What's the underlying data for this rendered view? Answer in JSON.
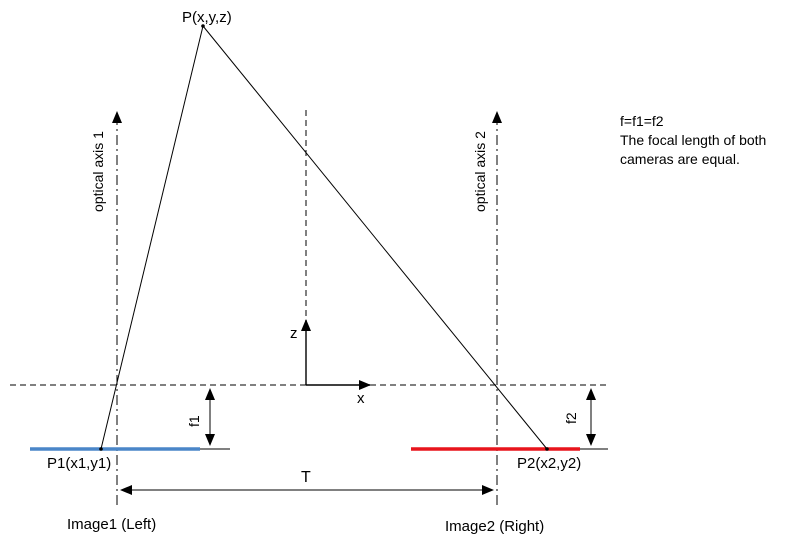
{
  "labels": {
    "point_p": "P(x,y,z)",
    "point_p1": "P1(x1,y1)",
    "point_p2": "P2(x2,y2)",
    "optical_axis_1": "optical axis 1",
    "optical_axis_2": "optical axis 2",
    "axis_z": "z",
    "axis_x": "x",
    "focal_1": "f1",
    "focal_2": "f2",
    "baseline": "T",
    "image_left": "Image1 (Left)",
    "image_right": "Image2 (Right)"
  },
  "note": {
    "line1": "f=f1=f2",
    "line2": "The focal length of both",
    "line3": "cameras are equal."
  },
  "colors": {
    "left_image_plane": "#4a86c8",
    "right_image_plane": "#e8141c",
    "lines": "#000000"
  }
}
